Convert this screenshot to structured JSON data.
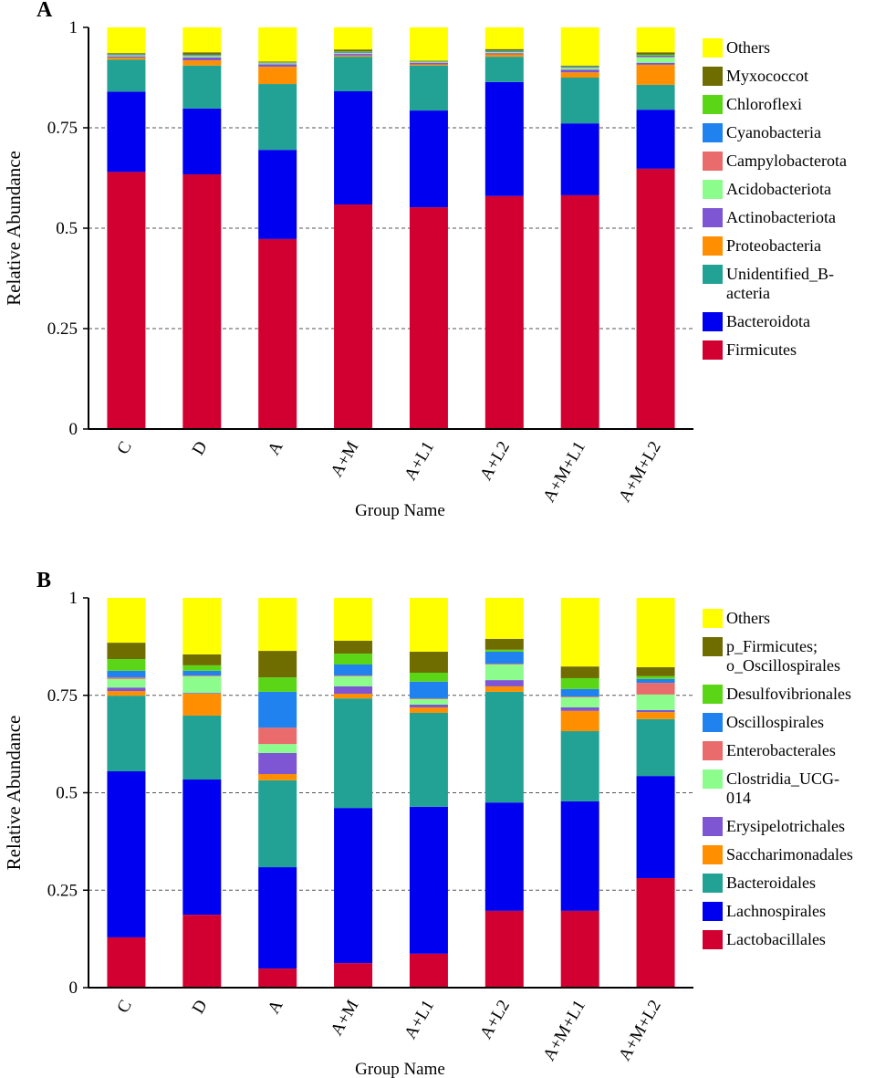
{
  "chart_data": [
    {
      "type": "stacked_bar",
      "title": "A",
      "x_label": "Group Name",
      "y_label": "Relative Abundance",
      "categories": [
        "C",
        "D",
        "A",
        "A+M",
        "A+L1",
        "A+L2",
        "A+M+L1",
        "A+M+L2"
      ],
      "ylim": [
        0,
        1
      ],
      "yticks": [
        0,
        0.25,
        0.5,
        0.75,
        1
      ],
      "grid": true,
      "series": [
        {
          "name": "Firmicutes",
          "color": "#d10030",
          "values": [
            0.64,
            0.634,
            0.473,
            0.559,
            0.552,
            0.58,
            0.582,
            0.648
          ]
        },
        {
          "name": "Bacteroidota",
          "color": "#0000f0",
          "values": [
            0.2,
            0.164,
            0.222,
            0.282,
            0.241,
            0.284,
            0.179,
            0.147
          ]
        },
        {
          "name": "Unidentified_B-\nacteria",
          "color": "#21a295",
          "values": [
            0.08,
            0.107,
            0.164,
            0.086,
            0.112,
            0.063,
            0.114,
            0.062
          ]
        },
        {
          "name": "Proteobacteria",
          "color": "#ff8f00",
          "values": [
            0.005,
            0.013,
            0.043,
            0.003,
            0.003,
            0.006,
            0.013,
            0.05
          ]
        },
        {
          "name": "Actinobacteriota",
          "color": "#7e56d4",
          "values": [
            0.003,
            0.007,
            0.006,
            0.004,
            0.004,
            0.003,
            0.007,
            0.005
          ]
        },
        {
          "name": "Acidobacteriota",
          "color": "#8cfc8c",
          "values": [
            0.002,
            0.003,
            0.002,
            0.002,
            0.001,
            0.002,
            0.004,
            0.013
          ]
        },
        {
          "name": "Campylobacterota",
          "color": "#ea6b6b",
          "values": [
            0.001,
            0.001,
            0.001,
            0.001,
            0.001,
            0.001,
            0.001,
            0.002
          ]
        },
        {
          "name": "Cyanobacteria",
          "color": "#1f82ee",
          "values": [
            0.002,
            0.002,
            0.001,
            0.002,
            0.001,
            0.002,
            0.002,
            0.003
          ]
        },
        {
          "name": "Chloroflexi",
          "color": "#5bd617",
          "values": [
            0.001,
            0.001,
            0.001,
            0.001,
            0.001,
            0.001,
            0.001,
            0.002
          ]
        },
        {
          "name": "Myxococcot",
          "color": "#6f6c00",
          "values": [
            0.002,
            0.006,
            0.002,
            0.005,
            0.001,
            0.004,
            0.002,
            0.006
          ]
        },
        {
          "name": "Others",
          "color": "#ffff00",
          "values": [
            0.064,
            0.062,
            0.085,
            0.055,
            0.083,
            0.054,
            0.095,
            0.062
          ]
        }
      ]
    },
    {
      "type": "stacked_bar",
      "title": "B",
      "x_label": "Group Name",
      "y_label": "Relative Abundance",
      "categories": [
        "C",
        "D",
        "A",
        "A+M",
        "A+L1",
        "A+L2",
        "A+M+L1",
        "A+M+L2"
      ],
      "ylim": [
        0,
        1
      ],
      "yticks": [
        0,
        0.25,
        0.5,
        0.75,
        1
      ],
      "grid": true,
      "series": [
        {
          "name": "Lactobacillales",
          "color": "#d10030",
          "values": [
            0.129,
            0.187,
            0.049,
            0.063,
            0.087,
            0.197,
            0.197,
            0.281
          ]
        },
        {
          "name": "Lachnospirales",
          "color": "#0000f0",
          "values": [
            0.426,
            0.347,
            0.26,
            0.398,
            0.377,
            0.278,
            0.281,
            0.262
          ]
        },
        {
          "name": "Bacteroidales",
          "color": "#21a295",
          "values": [
            0.194,
            0.164,
            0.223,
            0.281,
            0.241,
            0.284,
            0.18,
            0.146
          ]
        },
        {
          "name": "Saccharimonadales",
          "color": "#ff8f00",
          "values": [
            0.012,
            0.056,
            0.016,
            0.012,
            0.014,
            0.014,
            0.052,
            0.018
          ]
        },
        {
          "name": "Erysipelotrichales",
          "color": "#7e56d4",
          "values": [
            0.009,
            0.002,
            0.054,
            0.019,
            0.007,
            0.016,
            0.009,
            0.005
          ]
        },
        {
          "name": "Clostridia_UCG-\n014",
          "color": "#8cfc8c",
          "values": [
            0.022,
            0.043,
            0.023,
            0.026,
            0.014,
            0.04,
            0.026,
            0.04
          ]
        },
        {
          "name": "Enterobacterales",
          "color": "#ea6b6b",
          "values": [
            0.004,
            0.002,
            0.042,
            0.002,
            0.002,
            0.002,
            0.002,
            0.03
          ]
        },
        {
          "name": "Oscillospirales",
          "color": "#1f82ee",
          "values": [
            0.017,
            0.012,
            0.092,
            0.028,
            0.043,
            0.031,
            0.019,
            0.01
          ]
        },
        {
          "name": "Desulfovibrionales",
          "color": "#5bd617",
          "values": [
            0.03,
            0.014,
            0.037,
            0.028,
            0.023,
            0.005,
            0.028,
            0.007
          ]
        },
        {
          "name": "p_Firmicutes;\no_Oscillospirales",
          "color": "#6f6c00",
          "values": [
            0.042,
            0.028,
            0.068,
            0.033,
            0.054,
            0.028,
            0.03,
            0.023
          ]
        },
        {
          "name": "Others",
          "color": "#ffff00",
          "values": [
            0.115,
            0.145,
            0.136,
            0.11,
            0.138,
            0.105,
            0.176,
            0.178
          ]
        }
      ]
    }
  ]
}
